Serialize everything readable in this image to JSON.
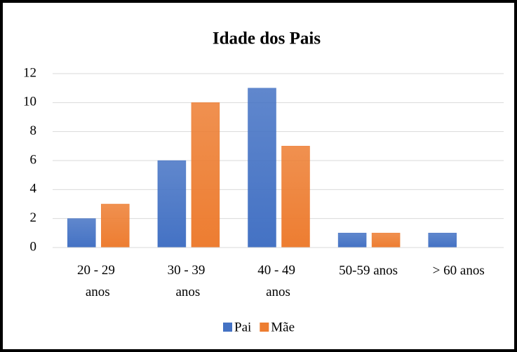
{
  "chart_data": {
    "type": "bar",
    "title": "Idade dos Pais",
    "categories": [
      "20 - 29 anos",
      "30 - 39 anos",
      "40 - 49 anos",
      "50-59 anos",
      "> 60 anos"
    ],
    "series": [
      {
        "name": "Pai",
        "color": "#4472c4",
        "values": [
          2,
          6,
          11,
          1,
          1
        ]
      },
      {
        "name": "Mãe",
        "color": "#ed7d31",
        "values": [
          3,
          10,
          7,
          1,
          0
        ]
      }
    ],
    "ylim": [
      0,
      12
    ],
    "yticks": [
      0,
      2,
      4,
      6,
      8,
      10,
      12
    ],
    "grid": true,
    "legend": "bottom"
  }
}
